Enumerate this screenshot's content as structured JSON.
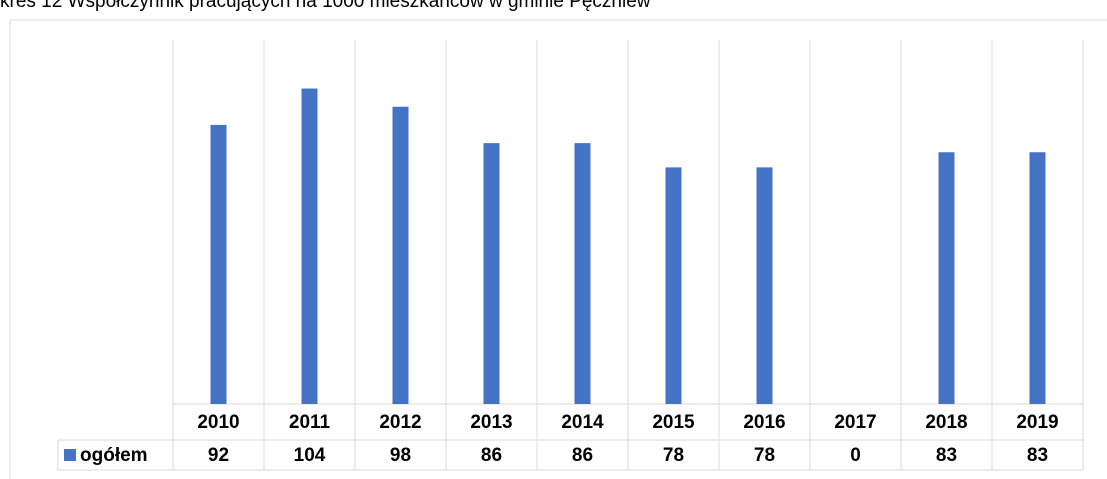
{
  "chart_data": {
    "type": "bar",
    "title": "kres 12 Współczynnik pracujących na 1000 mieszkańców w gminie Pęczniew",
    "categories": [
      "2010",
      "2011",
      "2012",
      "2013",
      "2014",
      "2015",
      "2016",
      "2017",
      "2018",
      "2019"
    ],
    "series": [
      {
        "name": "ogółem",
        "color": "#4472c4",
        "values": [
          92,
          104,
          98,
          86,
          86,
          78,
          78,
          0,
          83,
          83
        ]
      }
    ],
    "ylim": [
      0,
      120
    ]
  }
}
